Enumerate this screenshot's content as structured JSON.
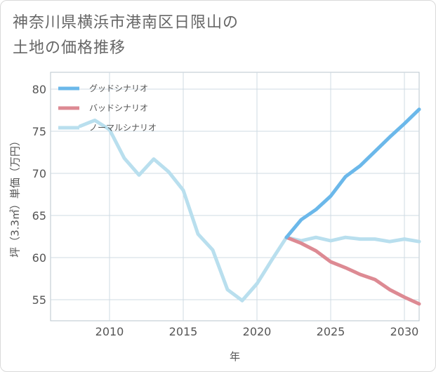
{
  "title_line1": "神奈川県横浜市港南区日限山の",
  "title_line2": "土地の価格推移",
  "chart_data": {
    "type": "line",
    "xlabel": "年",
    "ylabel": "坪（3.3㎡）単価（万円）",
    "xlim": [
      2006,
      2031
    ],
    "ylim": [
      52.5,
      82
    ],
    "xticks": [
      2010,
      2015,
      2020,
      2025,
      2030
    ],
    "yticks": [
      55,
      60,
      65,
      70,
      75,
      80
    ],
    "grid": true,
    "legend_position": "top-left",
    "series": [
      {
        "name": "グッドシナリオ",
        "color": "#6bb8ea",
        "x": [
          2022,
          2023,
          2024,
          2025,
          2026,
          2027,
          2028,
          2029,
          2030,
          2031
        ],
        "y": [
          62.4,
          64.5,
          65.7,
          67.3,
          69.6,
          70.9,
          72.6,
          74.3,
          75.9,
          77.6
        ]
      },
      {
        "name": "バッドシナリオ",
        "color": "#dd8a93",
        "x": [
          2022,
          2023,
          2024,
          2025,
          2026,
          2027,
          2028,
          2029,
          2030,
          2031
        ],
        "y": [
          62.4,
          61.7,
          60.8,
          59.5,
          58.8,
          58.0,
          57.4,
          56.2,
          55.3,
          54.5
        ]
      },
      {
        "name": "ノーマルシナリオ",
        "color": "#b9dfee",
        "x": [
          2008,
          2009,
          2010,
          2011,
          2012,
          2013,
          2014,
          2015,
          2016,
          2017,
          2018,
          2019,
          2020,
          2021,
          2022,
          2023,
          2024,
          2025,
          2026,
          2027,
          2028,
          2029,
          2030,
          2031
        ],
        "y": [
          75.6,
          76.3,
          75.2,
          71.8,
          69.8,
          71.7,
          70.2,
          68.0,
          62.8,
          60.9,
          56.2,
          54.9,
          56.9,
          59.7,
          62.4,
          62.0,
          62.4,
          62.0,
          62.4,
          62.2,
          62.2,
          61.9,
          62.2,
          61.9
        ]
      }
    ]
  }
}
